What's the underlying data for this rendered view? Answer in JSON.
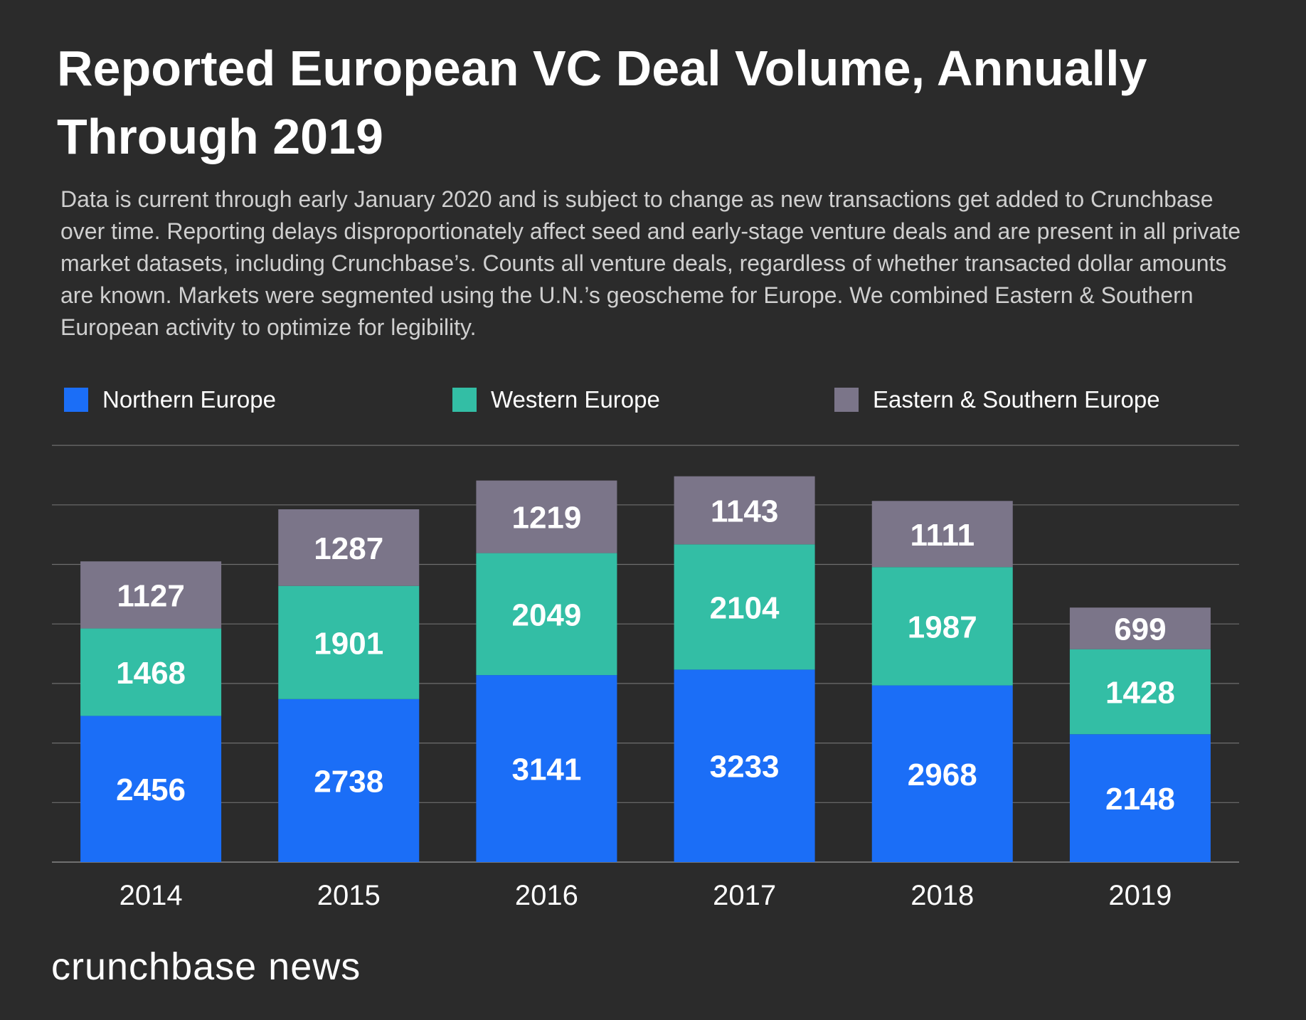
{
  "chart_data": {
    "type": "bar",
    "stacked": true,
    "title": "Reported European VC Deal Volume, Annually Through 2019",
    "subtitle": "Data is current through early January 2020 and is subject to change as new transactions get added to Crunchbase over time. Reporting delays disproportionately affect seed and early-stage venture deals and are present in all private market datasets, including Crunchbase’s. Counts all venture deals, regardless of whether transacted dollar amounts are known. Markets were segmented using the U.N.’s geoscheme for Europe. We combined Eastern & Southern European activity to optimize for legibility.",
    "categories": [
      "2014",
      "2015",
      "2016",
      "2017",
      "2018",
      "2019"
    ],
    "series": [
      {
        "name": "Northern Europe",
        "color": "#1b6ef7",
        "values": [
          2456,
          2738,
          3141,
          3233,
          2968,
          2148
        ]
      },
      {
        "name": "Western Europe",
        "color": "#33bea5",
        "values": [
          1468,
          1901,
          2049,
          2104,
          1987,
          1428
        ]
      },
      {
        "name": "Eastern & Southern Europe",
        "color": "#7b7589",
        "values": [
          1127,
          1287,
          1219,
          1143,
          1111,
          699
        ]
      }
    ],
    "ylim": [
      0,
      7000
    ],
    "grid": true,
    "legend": "top-left",
    "xlabel": "",
    "ylabel": ""
  },
  "brand": "crunchbase news"
}
